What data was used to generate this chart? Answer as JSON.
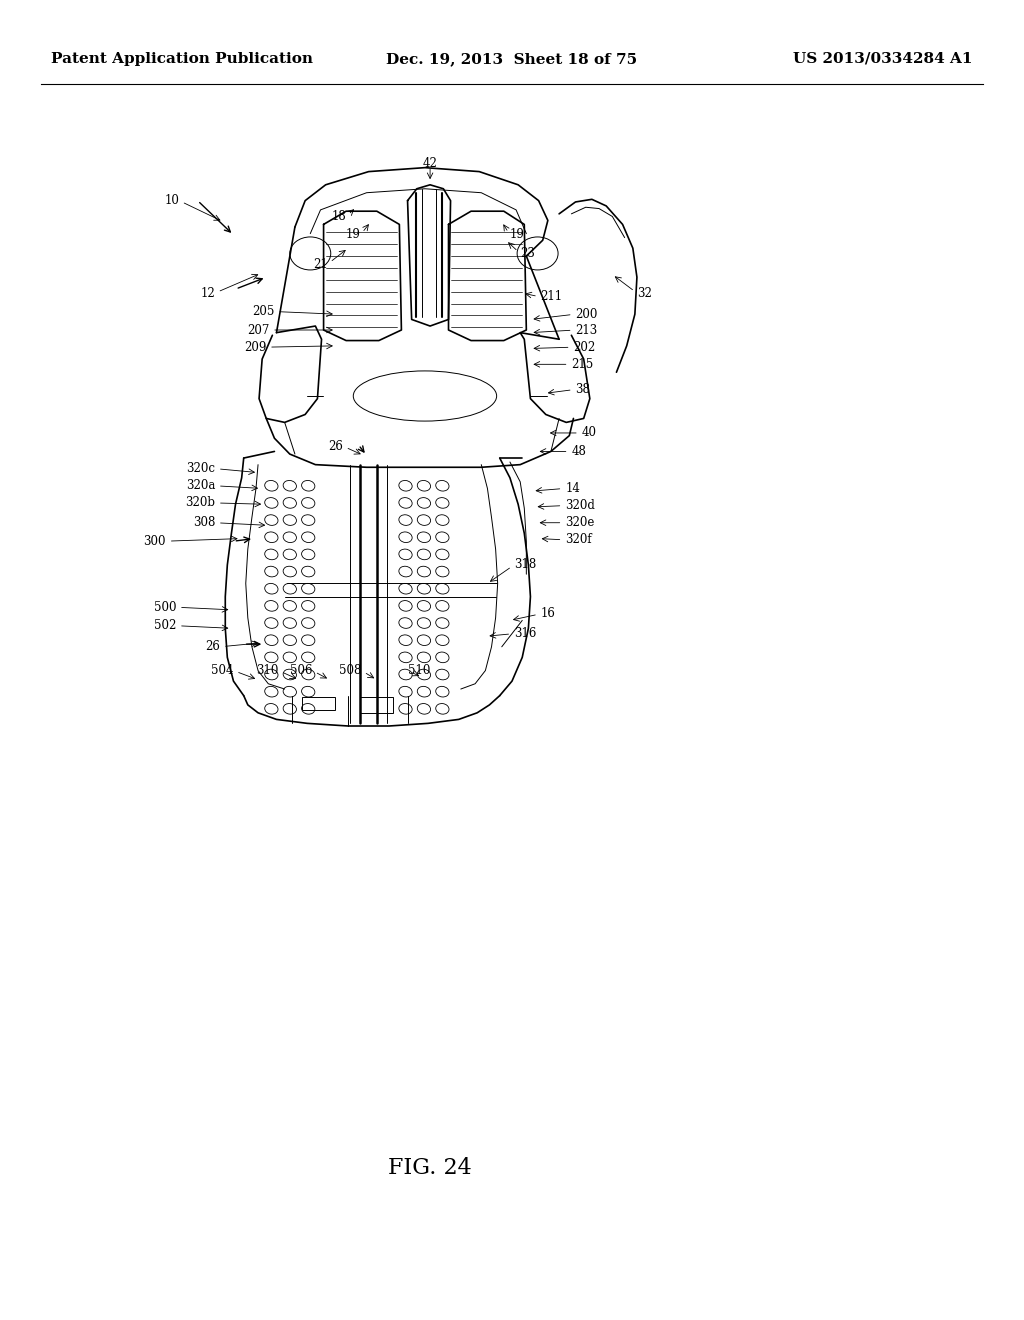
{
  "header_left": "Patent Application Publication",
  "header_center": "Dec. 19, 2013  Sheet 18 of 75",
  "header_right": "US 2013/0334284 A1",
  "figure_label": "FIG. 24",
  "bg_color": "#ffffff",
  "line_color": "#000000",
  "header_font_size": 11,
  "figure_label_font_size": 16
}
